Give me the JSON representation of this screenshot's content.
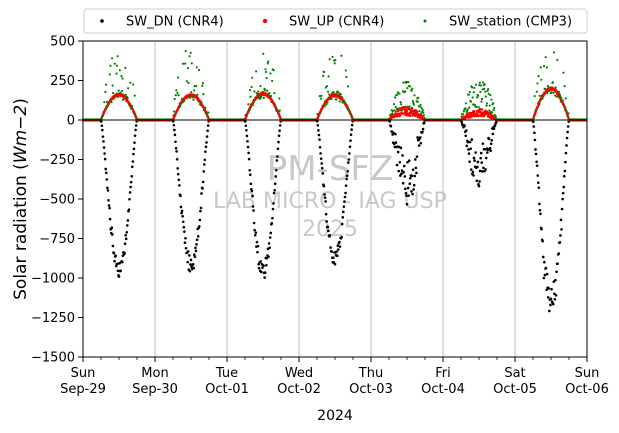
{
  "chart_data": {
    "type": "scatter",
    "xlabel": "2024",
    "ylabel_text": "Solar radiation (",
    "ylabel_unit": "Wm−2",
    "ylabel_close": ")",
    "ylim": [
      -1500,
      500
    ],
    "yticks": [
      -1500,
      -1250,
      -1000,
      -750,
      -500,
      -250,
      0,
      250,
      500
    ],
    "ytick_labels": [
      "−1500",
      "−1250",
      "−1000",
      "−750",
      "−500",
      "−250",
      "0",
      "250",
      "500"
    ],
    "xlim": [
      "2024-09-29",
      "2024-10-06"
    ],
    "xticks": [
      {
        "date": "2024-09-29",
        "day": "Sun",
        "label": "Sep-29"
      },
      {
        "date": "2024-09-30",
        "day": "Mon",
        "label": "Sep-30"
      },
      {
        "date": "2024-10-01",
        "day": "Tue",
        "label": "Oct-01"
      },
      {
        "date": "2024-10-02",
        "day": "Wed",
        "label": "Oct-02"
      },
      {
        "date": "2024-10-03",
        "day": "Thu",
        "label": "Oct-03"
      },
      {
        "date": "2024-10-04",
        "day": "Fri",
        "label": "Oct-04"
      },
      {
        "date": "2024-10-05",
        "day": "Sat",
        "label": "Oct-05"
      },
      {
        "date": "2024-10-06",
        "day": "Sun",
        "label": "Oct-06"
      }
    ],
    "grid": "x-major",
    "legend_position": "top",
    "watermark": [
      "PM-SFZ",
      "LAB MICRO - IAG USP",
      "2025"
    ],
    "series": [
      {
        "name": "SW_DN (CNR4)",
        "color": "#000000",
        "daily_min": [
          -955,
          -935,
          -975,
          -895,
          -560,
          -460,
          -1140
        ]
      },
      {
        "name": "SW_UP (CNR4)",
        "color": "#ff0000",
        "daily_max": [
          165,
          160,
          170,
          160,
          75,
          60,
          200
        ]
      },
      {
        "name": "SW_station (CMP3)",
        "color": "#008000",
        "daily_max": [
          490,
          480,
          460,
          450,
          310,
          330,
          490
        ]
      }
    ]
  }
}
